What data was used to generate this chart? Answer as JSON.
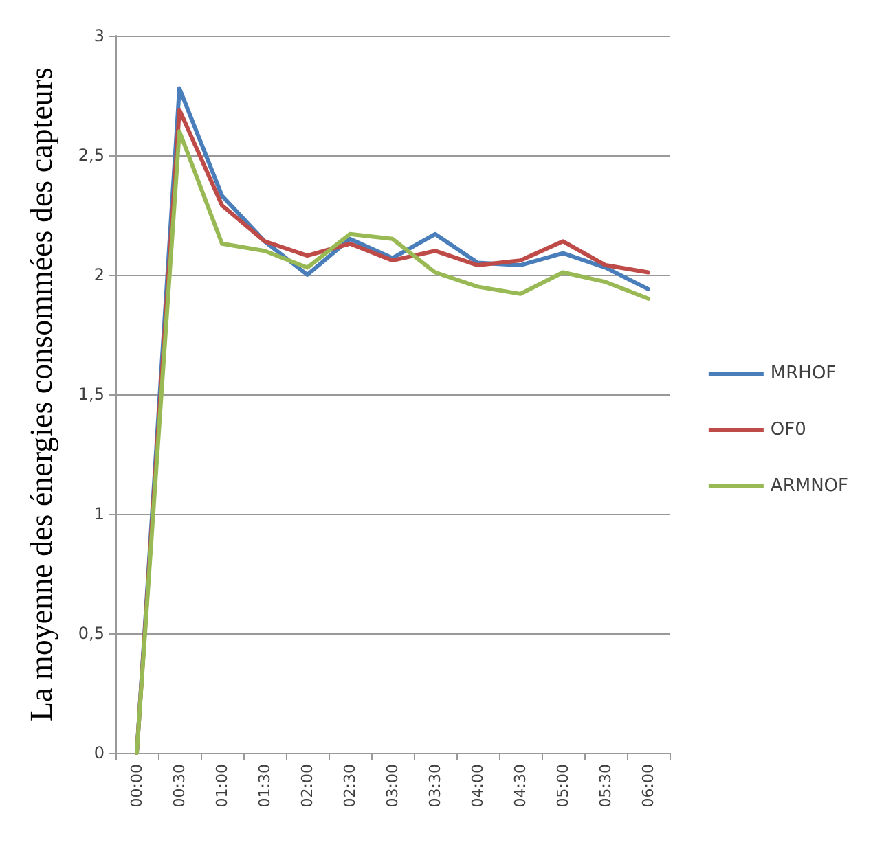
{
  "chart_data": {
    "type": "line",
    "ylabel": "La moyenne des énergies consommées des capteurs",
    "categories": [
      "00:00",
      "00:30",
      "01:00",
      "01:30",
      "02:00",
      "02:30",
      "03:00",
      "03:30",
      "04:00",
      "04:30",
      "05:00",
      "05:30",
      "06:00"
    ],
    "series": [
      {
        "name": "MRHOF",
        "color": "#4a7ebb",
        "values": [
          0,
          2.78,
          2.33,
          2.14,
          2.0,
          2.15,
          2.07,
          2.17,
          2.05,
          2.04,
          2.09,
          2.03,
          1.94
        ]
      },
      {
        "name": "OF0",
        "color": "#be4b48",
        "values": [
          0,
          2.69,
          2.29,
          2.14,
          2.08,
          2.13,
          2.06,
          2.1,
          2.04,
          2.06,
          2.14,
          2.04,
          2.01
        ]
      },
      {
        "name": "ARMNOF",
        "color": "#98b954",
        "values": [
          0,
          2.6,
          2.13,
          2.1,
          2.03,
          2.17,
          2.15,
          2.01,
          1.95,
          1.92,
          2.01,
          1.97,
          1.9
        ]
      }
    ],
    "ylim": [
      0,
      3
    ],
    "yticks": [
      0,
      {
        "value": 0.5,
        "label": "0,5"
      },
      1,
      {
        "value": 1.5,
        "label": "1,5"
      },
      2,
      {
        "value": 2.5,
        "label": "2,5"
      },
      3
    ],
    "grid": "y",
    "legend": "right",
    "marker": "none",
    "line_style": "solid"
  }
}
